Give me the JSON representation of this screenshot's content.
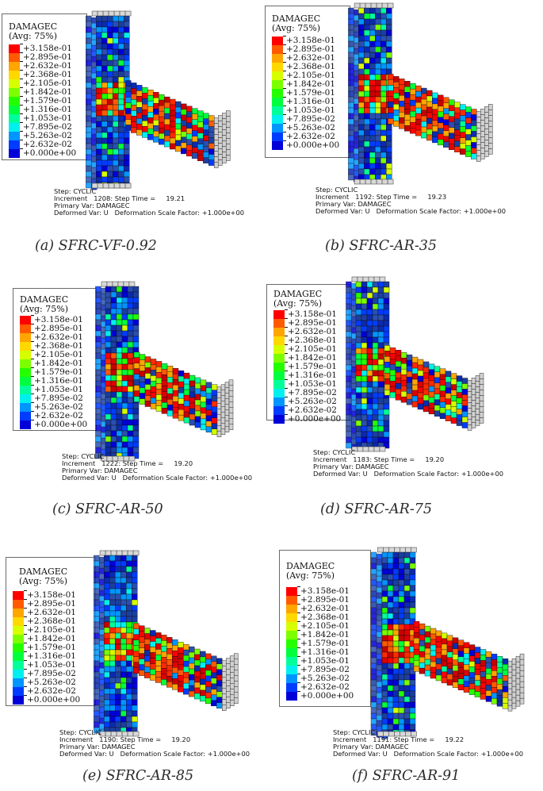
{
  "legend": {
    "title": "DAMAGEC",
    "subtitle": "(Avg: 75%)",
    "values": [
      "+3.158e-01",
      "+2.895e-01",
      "+2.632e-01",
      "+2.368e-01",
      "+2.105e-01",
      "+1.842e-01",
      "+1.579e-01",
      "+1.316e-01",
      "+1.053e-01",
      "+7.895e-02",
      "+5.263e-02",
      "+2.632e-02",
      "+0.000e+00"
    ],
    "colors": [
      "#ff0000",
      "#ff5a00",
      "#ffa500",
      "#ffd800",
      "#d6ff00",
      "#7cff00",
      "#24ff00",
      "#00ff3c",
      "#00ff9a",
      "#00f0f0",
      "#0095ff",
      "#003cff",
      "#0000d8"
    ]
  },
  "panels": [
    {
      "caption": "(a)  SFRC-VF-0.92",
      "step": "Step: CYCLIC",
      "increment": "Increment   1208: Step Time =     19.21",
      "primary": "Primary Var: DAMAGEC",
      "deformed": "Deformed Var: U   Deformation Scale Factor: +1.000e+00"
    },
    {
      "caption": "(b)  SFRC-AR-35",
      "step": "Step: CYCLIC",
      "increment": "Increment   1192: Step Time =     19.23",
      "primary": "Primary Var: DAMAGEC",
      "deformed": "Deformed Var: U   Deformation Scale Factor: +1.000e+00"
    },
    {
      "caption": "(c)  SFRC-AR-50",
      "step": "Step: CYCLIC",
      "increment": "Increment   1222: Step Time =     19.20",
      "primary": "Primary Var: DAMAGEC",
      "deformed": "Deformed Var: U   Deformation Scale Factor: +1.000e+00"
    },
    {
      "caption": "(d)  SFRC-AR-75",
      "step": "Step: CYCLIC",
      "increment": "Increment   1183: Step Time =     19.20",
      "primary": "Primary Var: DAMAGEC",
      "deformed": "Deformed Var: U   Deformation Scale Factor: +1.000e+00"
    },
    {
      "caption": "(e)  SFRC-AR-85",
      "step": "Step: CYCLIC",
      "increment": "Increment   1190: Step Time =     19.20",
      "primary": "Primary Var: DAMAGEC",
      "deformed": "Deformed Var: U   Deformation Scale Factor: +1.000e+00"
    },
    {
      "caption": "(f)  SFRC-AR-91",
      "step": "Step: CYCLIC",
      "increment": "Increment   1191: Step Time =     19.22",
      "primary": "Primary Var: DAMAGEC",
      "deformed": "Deformed Var: U   Deformation Scale Factor: +1.000e+00"
    }
  ]
}
